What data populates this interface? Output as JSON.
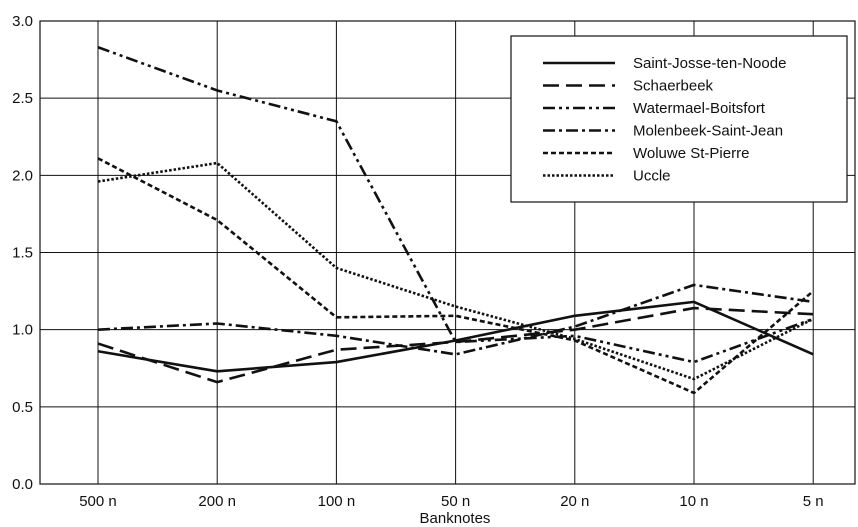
{
  "chart_data": {
    "type": "line",
    "xlabel": "Banknotes",
    "ylabel": "",
    "categories": [
      "500 n",
      "200 n",
      "100 n",
      "50 n",
      "20 n",
      "10 n",
      "5 n"
    ],
    "ylim": [
      0,
      3.0
    ],
    "yticks": [
      "0.0",
      "0.5",
      "1.0",
      "1.5",
      "2.0",
      "2.5",
      "3.0"
    ],
    "grid": true,
    "legend_position": "top-right",
    "series": [
      {
        "name": "Saint-Josse-ten-Noode",
        "values": [
          0.86,
          0.73,
          0.79,
          0.93,
          1.09,
          1.18,
          0.84
        ],
        "dash": ""
      },
      {
        "name": "Schaerbeek",
        "values": [
          0.91,
          0.66,
          0.87,
          0.92,
          1.0,
          1.14,
          1.1
        ],
        "dash": "16,7"
      },
      {
        "name": "Watermael-Boitsfort",
        "values": [
          2.83,
          2.55,
          2.35,
          0.92,
          0.96,
          0.79,
          1.07
        ],
        "dash": "12,4,3,4,3,4"
      },
      {
        "name": "Molenbeek-Saint-Jean",
        "values": [
          1.0,
          1.04,
          0.96,
          0.84,
          1.02,
          1.29,
          1.18
        ],
        "dash": "12,4,3,4"
      },
      {
        "name": "Woluwe St-Pierre",
        "values": [
          2.11,
          1.71,
          1.08,
          1.09,
          0.93,
          0.59,
          1.25
        ],
        "dash": "5,3"
      },
      {
        "name": "Uccle",
        "values": [
          1.96,
          2.08,
          1.4,
          1.15,
          0.94,
          0.68,
          1.07
        ],
        "dash": "2.5,2"
      }
    ]
  }
}
